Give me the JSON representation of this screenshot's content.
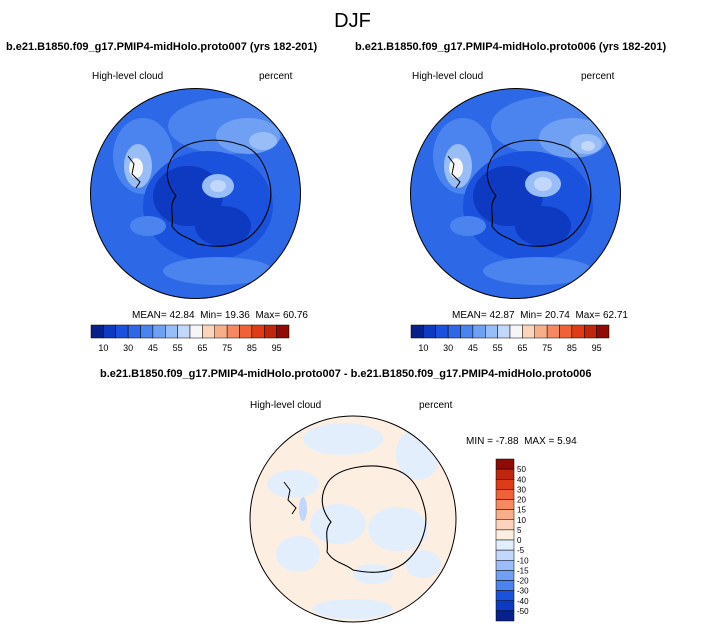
{
  "header": {
    "title": "DJF"
  },
  "panels": [
    {
      "case_title": "b.e21.B1850.f09_g17.PMIP4-midHolo.proto007 (yrs 182-201)",
      "variable": "High-level cloud",
      "units": "percent",
      "stats": {
        "mean_label": "MEAN=",
        "mean": "42.84",
        "min_label": "Min=",
        "min": "19.36",
        "max_label": "Max=",
        "max": "60.76"
      }
    },
    {
      "case_title": "b.e21.B1850.f09_g17.PMIP4-midHolo.proto006 (yrs 182-201)",
      "variable": "High-level cloud",
      "units": "percent",
      "stats": {
        "mean_label": "MEAN=",
        "mean": "42.87",
        "min_label": "Min=",
        "min": "20.74",
        "max_label": "Max=",
        "max": "62.71"
      }
    }
  ],
  "diff_panel": {
    "title": "b.e21.B1850.f09_g17.PMIP4-midHolo.proto007 - b.e21.B1850.f09_g17.PMIP4-midHolo.proto006",
    "variable": "High-level cloud",
    "units": "percent",
    "stats": {
      "min_label": "MIN =",
      "min": "-7.88",
      "max_label": "MAX =",
      "max": "5.94"
    }
  },
  "chart_data": [
    {
      "type": "heatmap",
      "title": "High-level cloud",
      "colorbar": {
        "orientation": "horizontal",
        "tick_labels": [
          "10",
          "30",
          "45",
          "55",
          "65",
          "75",
          "85",
          "95"
        ],
        "colors": [
          "#08208c",
          "#0d3ac1",
          "#1a52de",
          "#2d69e6",
          "#4b84ee",
          "#6fa0f3",
          "#98bdf7",
          "#c2d7fb",
          "#f6f6f6",
          "#fcd4bc",
          "#f9ae8a",
          "#f5895f",
          "#ef6237",
          "#de3c17",
          "#c0250d",
          "#8f0b05"
        ]
      }
    },
    {
      "type": "heatmap",
      "title": "High-level cloud",
      "colorbar": {
        "orientation": "horizontal",
        "tick_labels": [
          "10",
          "30",
          "45",
          "55",
          "65",
          "75",
          "85",
          "95"
        ],
        "colors": [
          "#08208c",
          "#0d3ac1",
          "#1a52de",
          "#2d69e6",
          "#4b84ee",
          "#6fa0f3",
          "#98bdf7",
          "#c2d7fb",
          "#f6f6f6",
          "#fcd4bc",
          "#f9ae8a",
          "#f5895f",
          "#ef6237",
          "#de3c17",
          "#c0250d",
          "#8f0b05"
        ]
      }
    },
    {
      "type": "heatmap",
      "title": "High-level cloud",
      "colorbar": {
        "orientation": "vertical",
        "levels": [
          "50",
          "40",
          "30",
          "20",
          "15",
          "10",
          "5",
          "0",
          "-5",
          "-10",
          "-15",
          "-20",
          "-30",
          "-40",
          "-50"
        ],
        "colors": [
          "#8f0b05",
          "#c0250d",
          "#de3c17",
          "#ef6237",
          "#f5895f",
          "#f9ae8a",
          "#fcd4bc",
          "#fdeee2",
          "#e3eefc",
          "#c2d7fb",
          "#98bdf7",
          "#6fa0f3",
          "#4b84ee",
          "#1a52de",
          "#0d3ac1",
          "#08208c"
        ]
      }
    }
  ]
}
